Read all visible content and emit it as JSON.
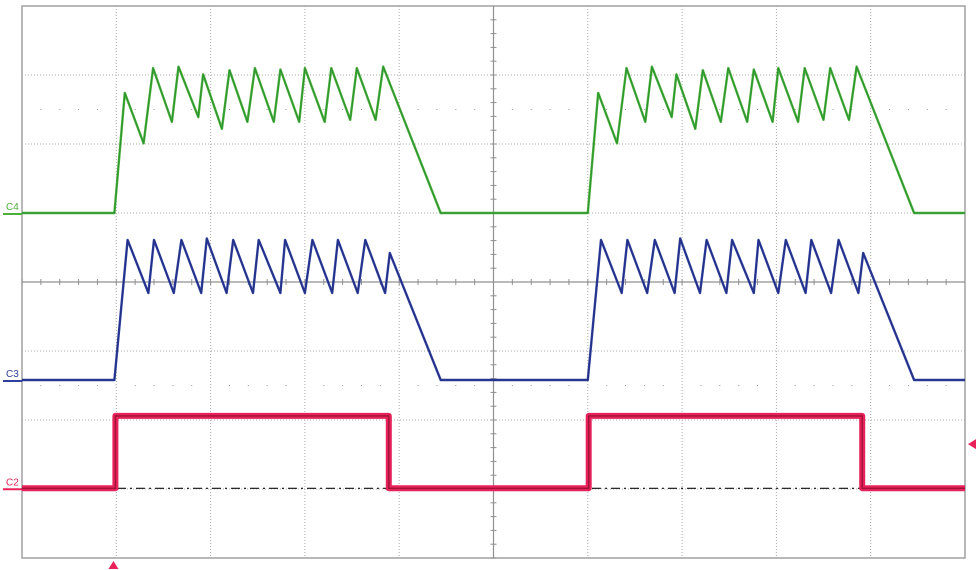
{
  "chart_data": {
    "type": "line",
    "title": "",
    "xlabel": "",
    "ylabel": "",
    "x_divisions": 10,
    "y_divisions": 8,
    "xlim": [
      0,
      10
    ],
    "ylim": [
      0,
      8
    ],
    "grid": true,
    "pulse_starts": [
      0,
      5.02
    ],
    "series": [
      {
        "name": "C4",
        "color": "#4caf3a",
        "dark_color": "#1e8a2e",
        "baseline": 5.0,
        "points": [
          [
            0.98,
            5.0
          ],
          [
            1.09,
            6.74
          ],
          [
            1.29,
            6.01
          ],
          [
            1.39,
            7.1
          ],
          [
            1.59,
            6.32
          ],
          [
            1.66,
            7.12
          ],
          [
            1.87,
            6.39
          ],
          [
            1.92,
            7.01
          ],
          [
            2.12,
            6.22
          ],
          [
            2.2,
            7.07
          ],
          [
            2.39,
            6.32
          ],
          [
            2.47,
            7.1
          ],
          [
            2.67,
            6.32
          ],
          [
            2.74,
            7.08
          ],
          [
            2.94,
            6.32
          ],
          [
            3.0,
            7.1
          ],
          [
            3.21,
            6.32
          ],
          [
            3.28,
            7.1
          ],
          [
            3.48,
            6.35
          ],
          [
            3.55,
            7.1
          ],
          [
            3.75,
            6.35
          ],
          [
            3.83,
            7.12
          ],
          [
            4.44,
            5.0
          ]
        ]
      },
      {
        "name": "C3",
        "color": "#2f3f9e",
        "dark_color": "#1f2a78",
        "baseline": 2.58,
        "points": [
          [
            0.98,
            2.58
          ],
          [
            1.12,
            4.61
          ],
          [
            1.34,
            3.84
          ],
          [
            1.4,
            4.61
          ],
          [
            1.61,
            3.84
          ],
          [
            1.69,
            4.61
          ],
          [
            1.9,
            3.84
          ],
          [
            1.96,
            4.63
          ],
          [
            2.17,
            3.84
          ],
          [
            2.24,
            4.61
          ],
          [
            2.45,
            3.84
          ],
          [
            2.51,
            4.61
          ],
          [
            2.74,
            3.84
          ],
          [
            2.79,
            4.61
          ],
          [
            3.0,
            3.84
          ],
          [
            3.08,
            4.61
          ],
          [
            3.29,
            3.84
          ],
          [
            3.35,
            4.61
          ],
          [
            3.56,
            3.84
          ],
          [
            3.64,
            4.61
          ],
          [
            3.85,
            3.84
          ],
          [
            3.9,
            4.42
          ],
          [
            4.44,
            2.58
          ]
        ]
      },
      {
        "name": "C2",
        "color": "#e8215a",
        "dark_color": "#8a1230",
        "baseline": 1.01,
        "points": [
          [
            0.99,
            1.01
          ],
          [
            0.99,
            2.06
          ],
          [
            3.89,
            2.06
          ],
          [
            3.89,
            1.01
          ]
        ]
      }
    ],
    "reference_level": 1.01,
    "trigger_time": 0.97,
    "trigger_level": 1.65,
    "trigger_color": "#e8215a"
  }
}
